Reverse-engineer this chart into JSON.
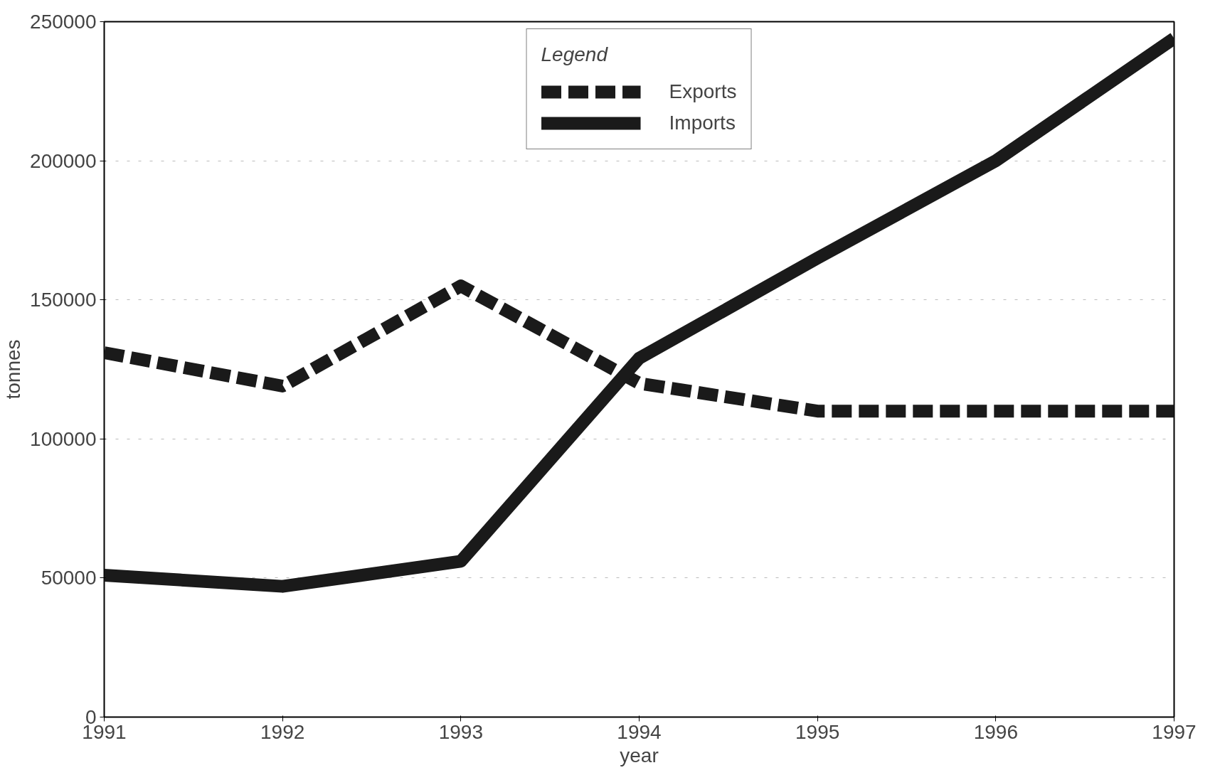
{
  "chart_data": {
    "type": "line",
    "xlabel": "year",
    "ylabel": "tonnes",
    "legend_title": "Legend",
    "legend": "top",
    "grid": "y",
    "x": [
      1991,
      1992,
      1993,
      1994,
      1995,
      1996,
      1997
    ],
    "xlim": [
      1991,
      1997
    ],
    "xticks": [
      1991,
      1992,
      1993,
      1994,
      1995,
      1996,
      1997
    ],
    "ylim": [
      0,
      250000
    ],
    "yticks": [
      0,
      50000,
      100000,
      150000,
      200000,
      250000
    ],
    "series": [
      {
        "name": "Exports",
        "color": "#1a1a1a",
        "line_style": "dashed",
        "values": [
          131000,
          119000,
          155000,
          120000,
          110000,
          110000,
          110000
        ]
      },
      {
        "name": "Imports",
        "color": "#1a1a1a",
        "line_style": "solid",
        "values": [
          51000,
          47000,
          56000,
          129000,
          165000,
          200000,
          244000
        ]
      }
    ]
  }
}
